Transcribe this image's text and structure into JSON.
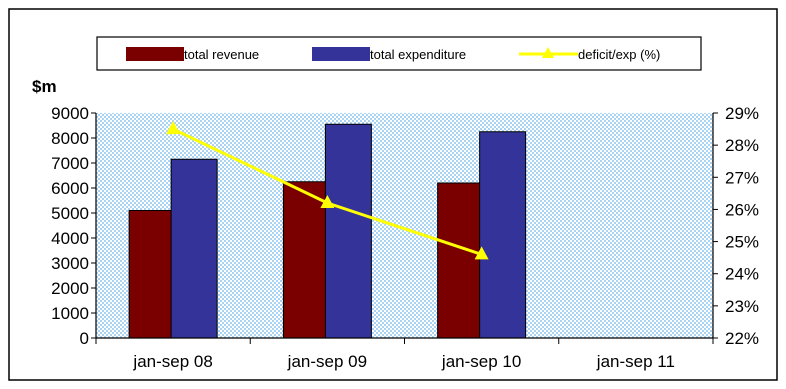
{
  "chart_data": {
    "type": "bar",
    "categories": [
      "jan-sep 08",
      "jan-sep 09",
      "jan-sep 10",
      "jan-sep 11"
    ],
    "series": [
      {
        "name": "total revenue",
        "type": "bar",
        "axis": "left",
        "color": "#7a0000",
        "values": [
          5100,
          6250,
          6200,
          null
        ]
      },
      {
        "name": "total expenditure",
        "type": "bar",
        "axis": "left",
        "color": "#333399",
        "values": [
          7150,
          8550,
          8250,
          null
        ]
      },
      {
        "name": "deficit/exp (%)",
        "type": "line",
        "axis": "right",
        "color": "#ffff00",
        "values": [
          28.5,
          26.2,
          24.6,
          null
        ]
      }
    ],
    "ylabel": "$m",
    "y_left": {
      "min": 0,
      "max": 9000,
      "step": 1000
    },
    "y_right": {
      "min": 22,
      "max": 29,
      "step": 1,
      "suffix": "%"
    },
    "y_left_ticks": [
      "0",
      "1000",
      "2000",
      "3000",
      "4000",
      "5000",
      "6000",
      "7000",
      "8000",
      "9000"
    ],
    "y_right_ticks": [
      "22%",
      "23%",
      "24%",
      "25%",
      "26%",
      "27%",
      "28%",
      "29%"
    ],
    "legend_position": "top",
    "plot_background": "light blue dotted"
  }
}
